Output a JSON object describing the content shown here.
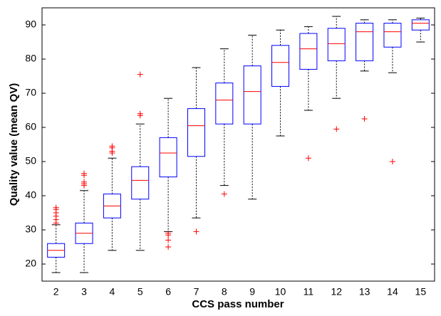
{
  "chart_data": {
    "type": "box",
    "x_label": "CCS pass number",
    "y_label": "Quality value (mean QV)",
    "categories": [
      "2",
      "3",
      "4",
      "5",
      "6",
      "7",
      "8",
      "9",
      "10",
      "11",
      "12",
      "13",
      "14",
      "15"
    ],
    "ylim": [
      15,
      95
    ],
    "yticks": [
      20,
      30,
      40,
      50,
      60,
      70,
      80,
      90
    ],
    "box_color": "#0000ff",
    "median_color": "#ff0000",
    "whisker_color": "#000000",
    "outlier_color": "#ff0000",
    "boxes": [
      {
        "whisker_low": 17.5,
        "q1": 22,
        "median": 24,
        "q3": 26,
        "whisker_high": 31.5,
        "outliers": [
          32,
          33,
          34,
          35,
          36,
          36.5
        ]
      },
      {
        "whisker_low": 17.5,
        "q1": 26,
        "median": 29,
        "q3": 32,
        "whisker_high": 41.5,
        "outliers": [
          43,
          43.5,
          44,
          46,
          46.5
        ]
      },
      {
        "whisker_low": 24,
        "q1": 33.5,
        "median": 37,
        "q3": 40.5,
        "whisker_high": 51,
        "outliers": [
          52.5,
          53,
          54,
          54.5
        ]
      },
      {
        "whisker_low": 24,
        "q1": 39,
        "median": 44.5,
        "q3": 48.5,
        "whisker_high": 61,
        "outliers": [
          63.5,
          64,
          75.5
        ]
      },
      {
        "whisker_low": 29.5,
        "q1": 45.5,
        "median": 52.5,
        "q3": 57,
        "whisker_high": 68.5,
        "outliers": [
          29,
          28.5,
          27,
          25
        ]
      },
      {
        "whisker_low": 33.5,
        "q1": 51.5,
        "median": 60.5,
        "q3": 65.5,
        "whisker_high": 77.5,
        "outliers": [
          29.5
        ]
      },
      {
        "whisker_low": 43,
        "q1": 61,
        "median": 68,
        "q3": 73,
        "whisker_high": 83,
        "outliers": [
          40.5
        ]
      },
      {
        "whisker_low": 39,
        "q1": 61,
        "median": 70.5,
        "q3": 78,
        "whisker_high": 87,
        "outliers": []
      },
      {
        "whisker_low": 57.5,
        "q1": 72,
        "median": 79,
        "q3": 84,
        "whisker_high": 88.5,
        "outliers": []
      },
      {
        "whisker_low": 65,
        "q1": 77,
        "median": 83,
        "q3": 87.5,
        "whisker_high": 89.5,
        "outliers": [
          51
        ]
      },
      {
        "whisker_low": 68.5,
        "q1": 79.5,
        "median": 84.5,
        "q3": 89,
        "whisker_high": 92.5,
        "outliers": [
          59.5
        ]
      },
      {
        "whisker_low": 76.5,
        "q1": 79.5,
        "median": 88,
        "q3": 90.5,
        "whisker_high": 91.5,
        "outliers": [
          62.5
        ]
      },
      {
        "whisker_low": 76,
        "q1": 83.5,
        "median": 88,
        "q3": 90.5,
        "whisker_high": 91.5,
        "outliers": [
          50
        ]
      },
      {
        "whisker_low": 85,
        "q1": 88.5,
        "median": 90.5,
        "q3": 91.5,
        "whisker_high": 92,
        "outliers": []
      }
    ]
  }
}
